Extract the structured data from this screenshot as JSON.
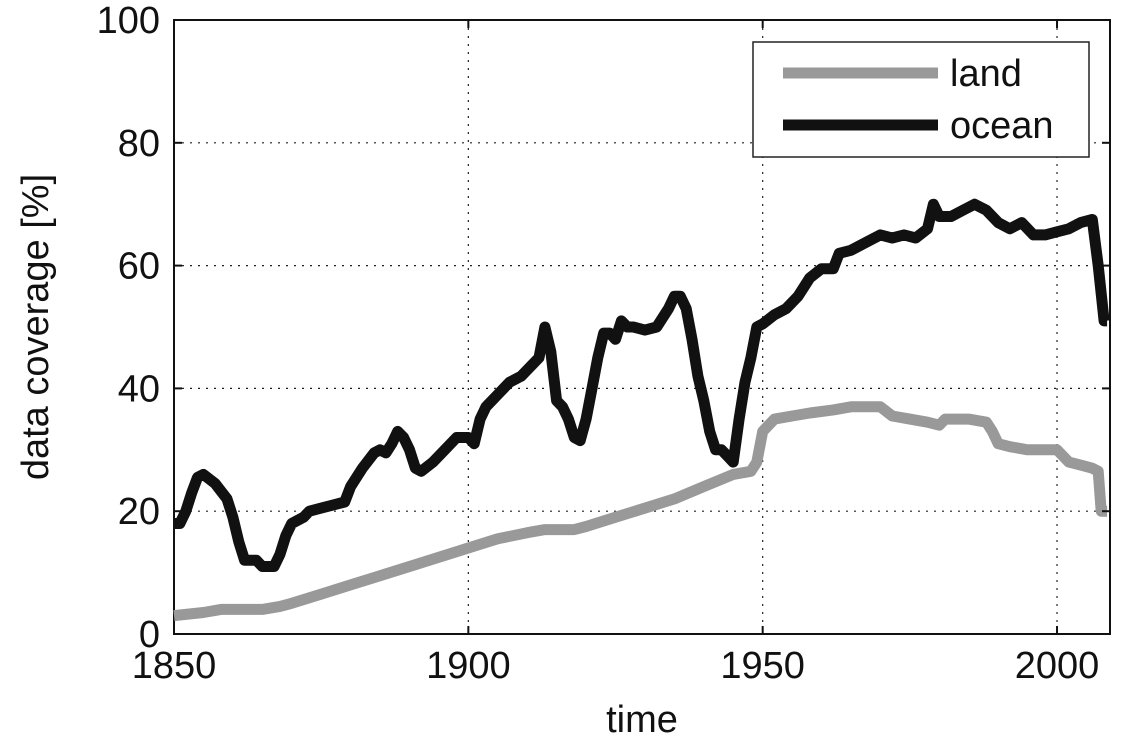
{
  "chart_data": {
    "type": "line",
    "title": "",
    "xlabel": "time",
    "ylabel": "data coverage [%]",
    "xlim": [
      1850,
      2009
    ],
    "ylim": [
      0,
      100
    ],
    "x_ticks": [
      1850,
      1900,
      1950,
      2000
    ],
    "y_ticks": [
      0,
      20,
      40,
      60,
      80,
      100
    ],
    "grid": true,
    "legend_position": "top-right",
    "series": [
      {
        "name": "land",
        "color": "#999999",
        "points": [
          [
            1850,
            3
          ],
          [
            1855,
            3.5
          ],
          [
            1858,
            4
          ],
          [
            1862,
            4
          ],
          [
            1865,
            4
          ],
          [
            1868,
            4.5
          ],
          [
            1870,
            5
          ],
          [
            1875,
            6.5
          ],
          [
            1880,
            8
          ],
          [
            1885,
            9.5
          ],
          [
            1890,
            11
          ],
          [
            1895,
            12.5
          ],
          [
            1900,
            14
          ],
          [
            1905,
            15.5
          ],
          [
            1910,
            16.5
          ],
          [
            1913,
            17
          ],
          [
            1918,
            17
          ],
          [
            1920,
            17.5
          ],
          [
            1925,
            19
          ],
          [
            1930,
            20.5
          ],
          [
            1935,
            22
          ],
          [
            1940,
            24
          ],
          [
            1945,
            26
          ],
          [
            1948,
            26.5
          ],
          [
            1949,
            28
          ],
          [
            1950,
            33
          ],
          [
            1952,
            35
          ],
          [
            1955,
            35.5
          ],
          [
            1958,
            36
          ],
          [
            1962,
            36.5
          ],
          [
            1965,
            37
          ],
          [
            1970,
            37
          ],
          [
            1972,
            35.5
          ],
          [
            1975,
            35
          ],
          [
            1978,
            34.5
          ],
          [
            1980,
            34
          ],
          [
            1981,
            35
          ],
          [
            1985,
            35
          ],
          [
            1988,
            34.5
          ],
          [
            1989,
            33
          ],
          [
            1990,
            31
          ],
          [
            1992,
            30.5
          ],
          [
            1995,
            30
          ],
          [
            2000,
            30
          ],
          [
            2002,
            28
          ],
          [
            2004,
            27.5
          ],
          [
            2006,
            27
          ],
          [
            2007,
            26.5
          ],
          [
            2007.5,
            20
          ],
          [
            2008.5,
            20
          ]
        ]
      },
      {
        "name": "ocean",
        "color": "#111111",
        "points": [
          [
            1850,
            18
          ],
          [
            1851,
            18
          ],
          [
            1852,
            20
          ],
          [
            1853,
            23
          ],
          [
            1854,
            25.5
          ],
          [
            1855,
            26
          ],
          [
            1857,
            24.5
          ],
          [
            1859,
            22
          ],
          [
            1860,
            19
          ],
          [
            1861,
            15
          ],
          [
            1862,
            12
          ],
          [
            1863,
            12
          ],
          [
            1864,
            12
          ],
          [
            1865,
            11
          ],
          [
            1867,
            11
          ],
          [
            1868,
            13
          ],
          [
            1869,
            16
          ],
          [
            1870,
            18
          ],
          [
            1872,
            19
          ],
          [
            1873,
            20
          ],
          [
            1875,
            20.5
          ],
          [
            1877,
            21
          ],
          [
            1879,
            21.5
          ],
          [
            1880,
            24
          ],
          [
            1882,
            27
          ],
          [
            1884,
            29.5
          ],
          [
            1885,
            30
          ],
          [
            1886,
            29.5
          ],
          [
            1887,
            31
          ],
          [
            1888,
            33
          ],
          [
            1889,
            32
          ],
          [
            1890,
            30
          ],
          [
            1891,
            27
          ],
          [
            1892,
            26.5
          ],
          [
            1894,
            28
          ],
          [
            1896,
            30
          ],
          [
            1898,
            32
          ],
          [
            1900,
            32
          ],
          [
            1901,
            31
          ],
          [
            1902,
            35
          ],
          [
            1903,
            37
          ],
          [
            1905,
            39
          ],
          [
            1907,
            41
          ],
          [
            1909,
            42
          ],
          [
            1911,
            44
          ],
          [
            1912,
            45
          ],
          [
            1913,
            50
          ],
          [
            1914,
            46
          ],
          [
            1915,
            38
          ],
          [
            1916,
            37
          ],
          [
            1917,
            35
          ],
          [
            1918,
            32
          ],
          [
            1919,
            31.5
          ],
          [
            1920,
            35
          ],
          [
            1921,
            40
          ],
          [
            1922,
            45
          ],
          [
            1923,
            49
          ],
          [
            1924,
            49
          ],
          [
            1925,
            48
          ],
          [
            1926,
            51
          ],
          [
            1927,
            50
          ],
          [
            1928,
            50
          ],
          [
            1930,
            49.5
          ],
          [
            1932,
            50
          ],
          [
            1934,
            53
          ],
          [
            1935,
            55
          ],
          [
            1936,
            55
          ],
          [
            1937,
            53
          ],
          [
            1938,
            48
          ],
          [
            1939,
            42
          ],
          [
            1940,
            38
          ],
          [
            1941,
            33
          ],
          [
            1942,
            30
          ],
          [
            1943,
            30
          ],
          [
            1944,
            29
          ],
          [
            1945,
            28
          ],
          [
            1946,
            35
          ],
          [
            1947,
            41
          ],
          [
            1948,
            45
          ],
          [
            1949,
            50
          ],
          [
            1950,
            50.5
          ],
          [
            1952,
            52
          ],
          [
            1954,
            53
          ],
          [
            1956,
            55
          ],
          [
            1958,
            58
          ],
          [
            1960,
            59.5
          ],
          [
            1962,
            59.5
          ],
          [
            1963,
            62
          ],
          [
            1965,
            62.5
          ],
          [
            1968,
            64
          ],
          [
            1970,
            65
          ],
          [
            1972,
            64.5
          ],
          [
            1974,
            65
          ],
          [
            1976,
            64.5
          ],
          [
            1978,
            66
          ],
          [
            1979,
            70
          ],
          [
            1980,
            68
          ],
          [
            1982,
            68
          ],
          [
            1984,
            69
          ],
          [
            1986,
            70
          ],
          [
            1988,
            69
          ],
          [
            1990,
            67
          ],
          [
            1992,
            66
          ],
          [
            1994,
            67
          ],
          [
            1996,
            65
          ],
          [
            1998,
            65
          ],
          [
            2000,
            65.5
          ],
          [
            2002,
            66
          ],
          [
            2004,
            67
          ],
          [
            2006,
            67.5
          ],
          [
            2007,
            60
          ],
          [
            2008,
            51
          ],
          [
            2008.5,
            51
          ]
        ]
      }
    ]
  }
}
